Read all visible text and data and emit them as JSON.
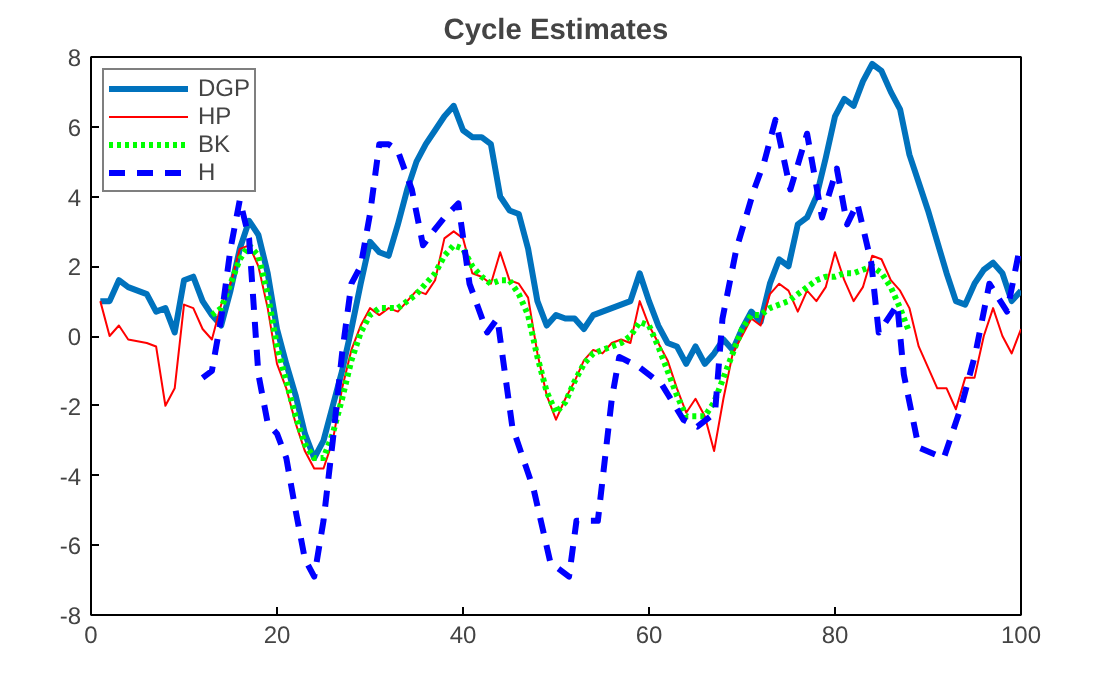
{
  "chart_data": {
    "type": "line",
    "title": "Cycle Estimates",
    "xlim": [
      0,
      100
    ],
    "xticks": [
      0,
      20,
      40,
      60,
      80,
      100
    ],
    "ylim": [
      -8,
      8
    ],
    "yticks": [
      -8,
      -6,
      -4,
      -2,
      0,
      2,
      4,
      6,
      8
    ],
    "grid": false,
    "legend": "top left",
    "marker": "none",
    "series": [
      {
        "name": "DGP",
        "color": "#0072bd",
        "line_style": "solid",
        "x": [
          1,
          2,
          3,
          4,
          5,
          6,
          7,
          8,
          9,
          10,
          11,
          12,
          13,
          14,
          15,
          16,
          17,
          18,
          19,
          20,
          21,
          22,
          23,
          24,
          25,
          26,
          27,
          28,
          29,
          30,
          31,
          32,
          33,
          34,
          35,
          36,
          37,
          38,
          39,
          40,
          41,
          42,
          43,
          44,
          45,
          46,
          47,
          48,
          49,
          50,
          51,
          52,
          53,
          54,
          55,
          56,
          57,
          58,
          59,
          60,
          61,
          62,
          63,
          64,
          65,
          66,
          67,
          68,
          69,
          70,
          71,
          72,
          73,
          74,
          75,
          76,
          77,
          78,
          79,
          80,
          81,
          82,
          83,
          84,
          85,
          86,
          87,
          88,
          89,
          90,
          91,
          92,
          93,
          94,
          95,
          96,
          97,
          98,
          99,
          100
        ],
        "values": [
          1.0,
          1.0,
          1.6,
          1.4,
          1.3,
          1.2,
          0.7,
          0.8,
          0.1,
          1.6,
          1.7,
          1.0,
          0.6,
          0.3,
          1.3,
          2.5,
          3.3,
          2.9,
          1.8,
          0.2,
          -0.8,
          -1.7,
          -2.8,
          -3.5,
          -3.0,
          -2.0,
          -1.0,
          0.2,
          1.5,
          2.7,
          2.4,
          2.3,
          3.2,
          4.2,
          5.0,
          5.5,
          5.9,
          6.3,
          6.6,
          5.9,
          5.7,
          5.7,
          5.5,
          4.0,
          3.6,
          3.5,
          2.5,
          1.0,
          0.3,
          0.6,
          0.5,
          0.5,
          0.2,
          0.6,
          0.7,
          0.8,
          0.9,
          1.0,
          1.8,
          1.0,
          0.3,
          -0.2,
          -0.3,
          -0.8,
          -0.3,
          -0.8,
          -0.5,
          -0.1,
          -0.4,
          0.2,
          0.7,
          0.4,
          1.5,
          2.2,
          2.0,
          3.2,
          3.4,
          4.0,
          5.1,
          6.3,
          6.8,
          6.6,
          7.3,
          7.8,
          7.6,
          7.0,
          6.5,
          5.2,
          4.4,
          3.6,
          2.7,
          1.8,
          1.0,
          0.9,
          1.5,
          1.9,
          2.1,
          1.8,
          1.0,
          1.3
        ]
      },
      {
        "name": "HP",
        "color": "#ff0000",
        "line_style": "solid",
        "x": [
          1,
          2,
          3,
          4,
          6,
          7,
          8,
          9,
          10,
          11,
          12,
          13,
          14,
          15,
          16,
          17,
          18,
          19,
          20,
          21,
          22,
          23,
          24,
          25,
          26,
          27,
          28,
          29,
          30,
          31,
          32,
          33,
          34,
          35,
          36,
          37,
          38,
          39,
          40,
          41,
          42,
          43,
          44,
          45,
          46,
          47,
          48,
          49,
          50,
          51,
          52,
          53,
          54,
          55,
          56,
          57,
          58,
          59,
          60,
          61,
          62,
          63,
          64,
          65,
          66,
          67,
          68,
          69,
          70,
          71,
          72,
          73,
          74,
          75,
          76,
          77,
          78,
          79,
          80,
          81,
          82,
          83,
          84,
          85,
          86,
          87,
          88,
          89,
          90,
          91,
          92,
          93,
          94,
          95,
          96,
          97,
          98,
          99,
          100
        ],
        "values": [
          1.0,
          0.0,
          0.3,
          -0.1,
          -0.2,
          -0.3,
          -2.0,
          -1.5,
          0.9,
          0.8,
          0.2,
          -0.1,
          0.9,
          1.5,
          2.5,
          2.6,
          2.0,
          0.8,
          -0.8,
          -1.5,
          -2.5,
          -3.3,
          -3.8,
          -3.8,
          -3.0,
          -1.5,
          -0.4,
          0.3,
          0.8,
          0.6,
          0.8,
          0.7,
          1.0,
          1.3,
          1.2,
          1.6,
          2.8,
          3.0,
          2.8,
          1.8,
          1.7,
          1.5,
          2.4,
          1.6,
          1.5,
          1.1,
          -0.5,
          -1.7,
          -2.4,
          -1.8,
          -1.3,
          -0.7,
          -0.4,
          -0.5,
          -0.2,
          -0.1,
          -0.2,
          1.0,
          0.3,
          -0.2,
          -0.7,
          -1.5,
          -2.2,
          -1.8,
          -2.3,
          -3.3,
          -1.8,
          -0.5,
          0.0,
          0.5,
          0.3,
          1.2,
          1.5,
          1.3,
          0.7,
          1.3,
          1.0,
          1.4,
          2.4,
          1.6,
          1.0,
          1.4,
          2.3,
          2.2,
          1.6,
          1.3,
          0.8,
          -0.3,
          -0.9,
          -1.5,
          -1.5,
          -2.1,
          -1.2,
          -1.2,
          0.0,
          0.8,
          0.0,
          -0.5,
          0.2
        ]
      },
      {
        "name": "BK",
        "color": "#00ff00",
        "line_style": "dotted",
        "x": [
          13,
          14,
          15,
          16,
          17,
          18,
          19,
          20,
          21,
          22,
          23,
          24,
          25,
          26,
          27,
          28,
          29,
          30,
          31,
          32,
          33,
          34,
          35,
          36,
          37,
          38,
          39,
          40,
          41,
          42,
          43,
          44,
          45,
          46,
          47,
          48,
          49,
          50,
          51,
          52,
          53,
          54,
          55,
          56,
          57,
          58,
          59,
          60,
          61,
          62,
          63,
          64,
          65,
          66,
          67,
          68,
          69,
          70,
          71,
          72,
          73,
          74,
          75,
          76,
          77,
          78,
          79,
          80,
          81,
          82,
          83,
          84,
          85,
          86,
          87,
          88
        ],
        "values": [
          0.6,
          0.8,
          1.5,
          2.2,
          2.6,
          2.3,
          1.2,
          -0.3,
          -1.3,
          -2.3,
          -3.1,
          -3.5,
          -3.5,
          -2.8,
          -1.8,
          -0.7,
          0.1,
          0.6,
          0.8,
          0.8,
          0.8,
          1.0,
          1.2,
          1.5,
          1.8,
          2.3,
          2.6,
          2.5,
          2.0,
          1.7,
          1.5,
          1.6,
          1.6,
          1.2,
          0.6,
          -0.6,
          -1.6,
          -2.2,
          -1.9,
          -1.3,
          -0.8,
          -0.5,
          -0.4,
          -0.3,
          -0.2,
          0.0,
          0.4,
          0.3,
          -0.3,
          -1.0,
          -1.7,
          -2.3,
          -2.3,
          -2.3,
          -1.9,
          -1.2,
          -0.5,
          0.2,
          0.6,
          0.6,
          0.8,
          0.9,
          1.0,
          1.2,
          1.4,
          1.6,
          1.7,
          1.7,
          1.8,
          1.8,
          1.9,
          2.0,
          1.8,
          1.4,
          0.8,
          0.1
        ]
      },
      {
        "name": "H",
        "color": "#0000ff",
        "line_style": "dashed",
        "x": [
          12,
          13,
          14,
          15,
          16,
          17,
          18,
          19,
          20,
          21,
          22,
          23,
          24,
          25,
          26,
          27,
          28,
          29,
          30,
          31,
          32,
          33,
          34.5,
          35.7,
          36.8,
          38,
          39.5,
          40.7,
          42.6,
          43.7,
          45.3,
          47.6,
          49.4,
          51.4,
          52.2,
          54.5,
          56,
          56.8,
          59,
          61.4,
          63.7,
          65.2,
          67.1,
          67.9,
          69.4,
          71.3,
          72.4,
          73.6,
          75.2,
          77,
          78.6,
          80.2,
          81.3,
          82.4,
          83.9,
          84.7,
          86.7,
          87.4,
          89,
          91.7,
          93.6,
          95.1,
          96.6,
          98.5,
          99.7
        ],
        "values": [
          -1.2,
          -1.0,
          0.5,
          2.5,
          3.9,
          2.8,
          -1.1,
          -2.5,
          -2.8,
          -3.5,
          -5.0,
          -6.4,
          -6.9,
          -5.3,
          -3.0,
          -0.5,
          1.5,
          2.0,
          3.5,
          5.5,
          5.5,
          5.3,
          4.2,
          2.6,
          3.0,
          3.4,
          3.8,
          1.5,
          0.1,
          0.5,
          -2.6,
          -4.4,
          -6.5,
          -6.9,
          -5.3,
          -5.3,
          -1.8,
          -0.6,
          -0.9,
          -1.4,
          -2.4,
          -2.6,
          -2.2,
          0.5,
          2.5,
          4.2,
          5.0,
          6.2,
          4.2,
          5.8,
          3.4,
          4.8,
          3.2,
          3.8,
          2.1,
          0.1,
          0.9,
          -1.1,
          -3.2,
          -3.5,
          -2.0,
          -0.5,
          1.5,
          0.7,
          2.3
        ]
      }
    ]
  }
}
